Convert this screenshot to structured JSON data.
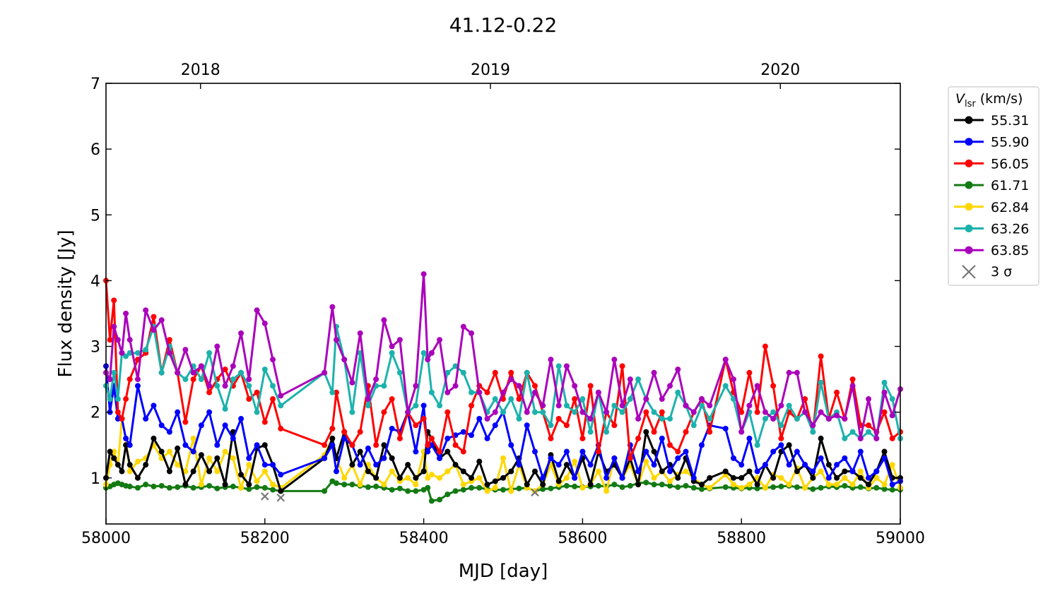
{
  "chart_data": {
    "type": "line",
    "title": "41.12-0.22",
    "xlabel": "MJD [day]",
    "ylabel": "Flux density [Jy]",
    "xlim": [
      58000,
      59000
    ],
    "ylim": [
      0.3,
      7
    ],
    "xticks": [
      58000,
      58200,
      58400,
      58600,
      58800,
      59000
    ],
    "yticks": [
      1,
      2,
      3,
      4,
      5,
      6,
      7
    ],
    "top_axis": {
      "ticks": [
        {
          "label": "2018",
          "mjd": 58119
        },
        {
          "label": "2019",
          "mjd": 58484
        },
        {
          "label": "2020",
          "mjd": 58849
        }
      ]
    },
    "grid": false,
    "legend": {
      "placement": "outside-right",
      "title_var": "V",
      "title_sub": "lsr",
      "title_unit": " (km/s)",
      "sigma_label": "3 σ"
    },
    "x": [
      58000,
      58005,
      58010,
      58015,
      58020,
      58025,
      58030,
      58040,
      58050,
      58060,
      58070,
      58080,
      58090,
      58100,
      58110,
      58120,
      58130,
      58140,
      58150,
      58160,
      58170,
      58180,
      58190,
      58200,
      58210,
      58220,
      58275,
      58285,
      58290,
      58300,
      58310,
      58320,
      58330,
      58340,
      58350,
      58360,
      58370,
      58380,
      58390,
      58400,
      58405,
      58410,
      58420,
      58430,
      58440,
      58450,
      58460,
      58470,
      58480,
      58490,
      58500,
      58510,
      58520,
      58530,
      58540,
      58550,
      58560,
      58570,
      58580,
      58590,
      58600,
      58610,
      58620,
      58630,
      58640,
      58650,
      58660,
      58670,
      58680,
      58690,
      58700,
      58710,
      58720,
      58730,
      58740,
      58750,
      58760,
      58780,
      58790,
      58800,
      58810,
      58820,
      58830,
      58840,
      58850,
      58860,
      58870,
      58880,
      58890,
      58900,
      58910,
      58920,
      58930,
      58940,
      58950,
      58960,
      58970,
      58980,
      58990,
      59000
    ],
    "series": [
      {
        "name": "55.31",
        "color": "#000000",
        "values": [
          1.0,
          1.4,
          1.3,
          1.2,
          1.1,
          1.5,
          1.2,
          1.0,
          1.2,
          1.6,
          1.4,
          1.1,
          1.45,
          0.9,
          1.1,
          1.35,
          1.1,
          1.3,
          0.9,
          1.7,
          1.05,
          0.9,
          1.45,
          1.5,
          1.2,
          0.8,
          1.3,
          1.6,
          1.3,
          1.7,
          1.2,
          1.4,
          1.1,
          1.0,
          1.5,
          1.3,
          1.0,
          1.2,
          1.0,
          1.1,
          1.7,
          1.6,
          1.3,
          1.4,
          1.2,
          1.1,
          1.0,
          1.25,
          0.9,
          0.95,
          1.0,
          1.1,
          1.3,
          0.9,
          1.1,
          0.9,
          1.35,
          0.95,
          1.2,
          1.0,
          1.3,
          0.9,
          1.4,
          1.1,
          1.2,
          1.0,
          1.3,
          0.9,
          1.7,
          1.4,
          1.1,
          1.2,
          1.0,
          1.3,
          0.95,
          0.9,
          1.0,
          1.1,
          1.0,
          1.0,
          1.1,
          0.9,
          1.2,
          1.0,
          1.4,
          1.5,
          1.1,
          1.2,
          1.0,
          1.6,
          1.2,
          1.0,
          1.1,
          1.1,
          1.0,
          0.9,
          1.1,
          1.4,
          1.0,
          1.0
        ]
      },
      {
        "name": "55.90",
        "color": "#0000ff",
        "values": [
          2.7,
          2.0,
          2.4,
          1.9,
          1.9,
          1.6,
          1.5,
          2.4,
          1.9,
          2.1,
          1.8,
          1.7,
          2.0,
          1.5,
          1.4,
          1.8,
          2.0,
          1.5,
          1.8,
          1.6,
          1.9,
          1.3,
          1.5,
          1.2,
          1.2,
          1.05,
          1.3,
          1.5,
          1.1,
          1.6,
          1.5,
          1.2,
          1.45,
          1.2,
          1.3,
          1.75,
          1.7,
          2.0,
          1.4,
          2.1,
          1.4,
          1.5,
          1.3,
          1.6,
          1.65,
          1.7,
          1.65,
          1.9,
          1.6,
          1.8,
          2.0,
          1.5,
          1.2,
          1.8,
          1.4,
          1.0,
          1.3,
          1.2,
          1.4,
          1.0,
          1.4,
          1.2,
          1.5,
          1.0,
          1.3,
          1.0,
          1.5,
          1.1,
          1.4,
          1.2,
          1.6,
          1.1,
          1.3,
          1.4,
          1.0,
          1.5,
          1.8,
          1.75,
          1.3,
          1.2,
          1.6,
          1.1,
          1.2,
          1.4,
          1.5,
          1.2,
          1.4,
          1.2,
          1.1,
          1.3,
          1.0,
          1.2,
          1.3,
          1.1,
          1.4,
          1.0,
          1.1,
          1.3,
          0.9,
          0.95
        ]
      },
      {
        "name": "56.05",
        "color": "#ff0000",
        "values": [
          4.0,
          3.1,
          3.7,
          2.0,
          1.9,
          2.2,
          2.5,
          2.8,
          2.9,
          3.45,
          2.6,
          3.1,
          2.6,
          1.85,
          2.5,
          2.7,
          2.3,
          2.5,
          2.65,
          2.4,
          2.6,
          2.2,
          2.3,
          1.85,
          2.2,
          1.75,
          1.5,
          1.75,
          2.3,
          1.7,
          1.5,
          1.7,
          2.4,
          1.5,
          2.0,
          2.2,
          1.6,
          2.0,
          1.8,
          1.9,
          1.5,
          1.6,
          1.4,
          2.0,
          1.5,
          1.4,
          2.1,
          2.4,
          2.3,
          2.6,
          2.2,
          2.6,
          2.2,
          2.6,
          2.4,
          2.0,
          1.6,
          1.9,
          1.8,
          2.2,
          1.6,
          2.4,
          1.4,
          2.0,
          1.8,
          2.7,
          1.3,
          1.6,
          2.0,
          1.7,
          2.0,
          1.5,
          1.4,
          1.7,
          2.0,
          2.2,
          1.7,
          2.8,
          2.3,
          2.0,
          2.6,
          2.0,
          3.0,
          2.4,
          1.6,
          2.0,
          1.9,
          2.2,
          1.7,
          2.85,
          1.9,
          2.3,
          1.9,
          2.5,
          1.8,
          1.8,
          1.7,
          2.0,
          1.6,
          1.7
        ]
      },
      {
        "name": "61.71",
        "color": "#137a13",
        "values": [
          0.85,
          0.87,
          0.9,
          0.92,
          0.9,
          0.88,
          0.87,
          0.85,
          0.9,
          0.87,
          0.88,
          0.85,
          0.86,
          0.88,
          0.85,
          0.86,
          0.88,
          0.84,
          0.86,
          0.87,
          0.85,
          0.83,
          0.86,
          0.85,
          0.82,
          0.8,
          0.8,
          0.95,
          0.92,
          0.9,
          0.9,
          0.88,
          0.86,
          0.87,
          0.85,
          0.82,
          0.84,
          0.8,
          0.8,
          0.82,
          0.85,
          0.65,
          0.67,
          0.75,
          0.8,
          0.82,
          0.85,
          0.85,
          0.83,
          0.82,
          0.82,
          0.83,
          0.84,
          0.85,
          0.8,
          0.83,
          0.84,
          0.86,
          0.88,
          0.87,
          0.86,
          0.87,
          0.88,
          0.87,
          0.9,
          0.86,
          0.88,
          0.92,
          0.93,
          0.9,
          0.9,
          0.88,
          0.86,
          0.88,
          0.85,
          0.83,
          0.84,
          0.86,
          0.85,
          0.84,
          0.85,
          0.84,
          0.85,
          0.86,
          0.87,
          0.88,
          0.86,
          0.85,
          0.83,
          0.85,
          0.87,
          0.86,
          0.88,
          0.85,
          0.86,
          0.84,
          0.85,
          0.83,
          0.82,
          0.82
        ]
      },
      {
        "name": "62.84",
        "color": "#ffd700",
        "values": [
          0.9,
          1.2,
          1.4,
          1.2,
          1.9,
          1.6,
          1.1,
          1.25,
          1.3,
          1.5,
          1.3,
          1.4,
          1.2,
          1.1,
          1.6,
          0.9,
          1.3,
          1.1,
          1.4,
          1.3,
          0.85,
          1.2,
          0.95,
          1.1,
          0.9,
          0.85,
          1.35,
          1.6,
          1.3,
          1.0,
          1.2,
          0.9,
          1.2,
          1.0,
          0.9,
          1.1,
          0.95,
          1.0,
          0.9,
          1.4,
          1.0,
          1.05,
          1.0,
          1.1,
          1.2,
          0.9,
          0.95,
          1.0,
          0.8,
          0.85,
          1.3,
          0.8,
          1.2,
          0.85,
          0.8,
          0.9,
          1.2,
          0.9,
          1.0,
          1.25,
          0.85,
          0.9,
          1.1,
          0.8,
          1.3,
          1.0,
          1.2,
          0.9,
          1.25,
          1.0,
          1.1,
          0.95,
          1.05,
          1.1,
          1.0,
          0.9,
          0.85,
          1.05,
          0.9,
          0.85,
          0.9,
          1.0,
          0.85,
          1.05,
          1.0,
          0.9,
          1.15,
          0.85,
          1.0,
          1.1,
          0.9,
          0.9,
          1.0,
          0.9,
          1.1,
          0.85,
          1.0,
          0.9,
          1.2,
          0.85
        ]
      },
      {
        "name": "63.26",
        "color": "#1cb2ac",
        "values": [
          2.4,
          2.2,
          2.6,
          2.2,
          2.9,
          2.85,
          2.9,
          2.9,
          2.95,
          3.3,
          2.6,
          3.0,
          2.6,
          2.5,
          2.7,
          2.5,
          2.9,
          2.4,
          2.05,
          2.5,
          2.6,
          2.4,
          2.0,
          2.65,
          2.4,
          2.1,
          2.6,
          2.3,
          3.3,
          2.8,
          2.0,
          2.9,
          2.1,
          2.4,
          2.4,
          2.9,
          2.6,
          2.0,
          2.1,
          2.9,
          2.85,
          2.3,
          2.1,
          2.6,
          2.7,
          2.6,
          2.3,
          2.3,
          2.0,
          2.2,
          2.0,
          2.2,
          1.9,
          2.6,
          2.0,
          2.0,
          1.8,
          2.7,
          2.1,
          2.0,
          2.2,
          1.7,
          2.3,
          1.7,
          2.1,
          2.0,
          2.2,
          2.5,
          2.2,
          2.0,
          1.9,
          1.9,
          2.3,
          2.1,
          1.8,
          2.1,
          1.9,
          2.4,
          2.2,
          1.7,
          2.0,
          1.5,
          1.9,
          2.0,
          1.8,
          2.1,
          1.9,
          2.0,
          1.7,
          2.45,
          1.9,
          2.0,
          1.6,
          1.7,
          1.6,
          1.7,
          1.6,
          2.45,
          2.2,
          1.6
        ]
      },
      {
        "name": "63.85",
        "color": "#aa00bb",
        "values": [
          2.6,
          2.5,
          3.3,
          3.1,
          2.9,
          3.5,
          3.1,
          2.5,
          3.55,
          3.25,
          3.4,
          2.9,
          2.6,
          2.95,
          2.6,
          2.7,
          2.4,
          3.0,
          2.4,
          2.7,
          3.2,
          2.5,
          3.55,
          3.35,
          2.8,
          2.25,
          2.6,
          3.6,
          3.1,
          2.8,
          2.45,
          3.2,
          2.2,
          2.5,
          3.4,
          3.0,
          3.1,
          2.0,
          2.4,
          4.1,
          2.8,
          2.9,
          3.1,
          2.3,
          2.4,
          3.3,
          3.2,
          2.3,
          1.9,
          2.0,
          2.3,
          2.5,
          2.4,
          2.0,
          2.3,
          2.1,
          2.8,
          2.1,
          2.7,
          2.4,
          2.0,
          1.9,
          2.3,
          2.0,
          2.8,
          2.1,
          2.5,
          1.9,
          2.2,
          2.6,
          2.2,
          2.4,
          2.65,
          2.1,
          2.0,
          2.2,
          2.1,
          2.8,
          2.5,
          1.7,
          2.1,
          2.4,
          2.0,
          1.9,
          2.1,
          2.6,
          2.6,
          2.0,
          1.8,
          2.0,
          1.9,
          1.95,
          1.9,
          2.4,
          1.6,
          2.2,
          1.6,
          2.3,
          1.95,
          2.35
        ]
      }
    ],
    "sigma_points": {
      "label": "3 σ",
      "color": "#777777",
      "x": [
        58200,
        58220,
        58540
      ],
      "y": [
        0.72,
        0.7,
        0.78
      ]
    }
  }
}
